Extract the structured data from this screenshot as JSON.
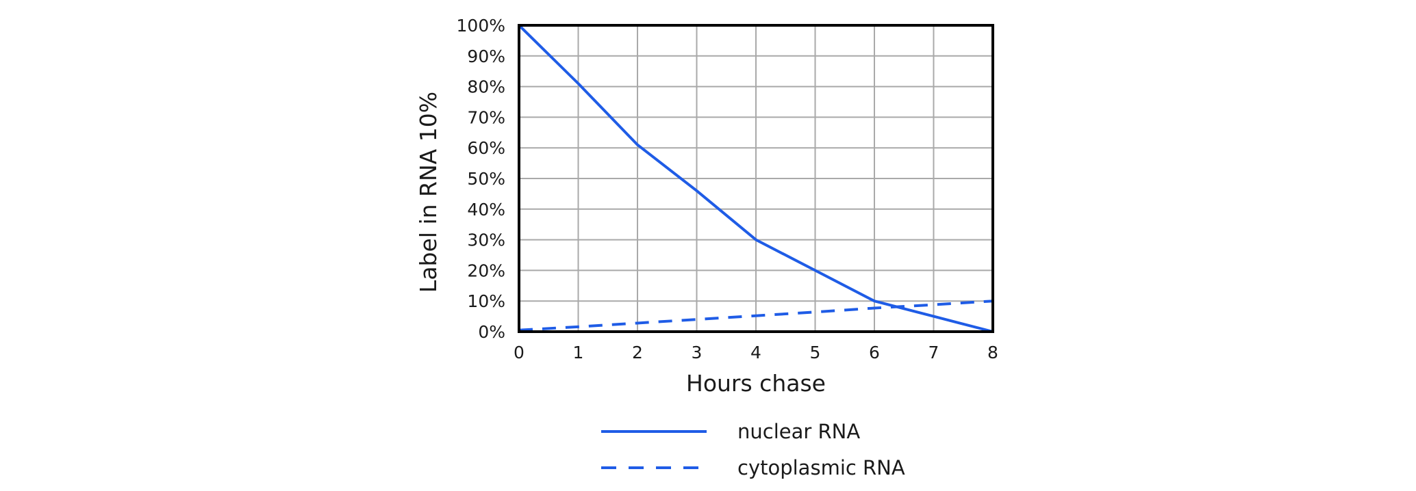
{
  "chart_data": {
    "type": "line",
    "title": "",
    "xlabel": "Hours chase",
    "ylabel": "Label in RNA 10%",
    "x": [
      0,
      1,
      2,
      3,
      4,
      5,
      6,
      7,
      8
    ],
    "x_ticks": [
      "0",
      "1",
      "2",
      "3",
      "4",
      "5",
      "6",
      "7",
      "8"
    ],
    "y_ticks": [
      "0%",
      "10%",
      "20%",
      "30%",
      "40%",
      "50%",
      "60%",
      "70%",
      "80%",
      "90%",
      "100%"
    ],
    "xlim": [
      0,
      8
    ],
    "ylim": [
      0,
      100
    ],
    "y_unit": "%",
    "grid": true,
    "legend_position": "bottom",
    "series": [
      {
        "name": "nuclear RNA",
        "style": "solid",
        "color": "#1f5ce6",
        "values": [
          100,
          81,
          61,
          46,
          30,
          20,
          10,
          5,
          0
        ]
      },
      {
        "name": "cytoplasmic RNA",
        "style": "dashed",
        "color": "#1f5ce6",
        "values": [
          0.5,
          1.6,
          2.8,
          4,
          5.2,
          6.4,
          7.7,
          8.8,
          10
        ]
      }
    ]
  }
}
